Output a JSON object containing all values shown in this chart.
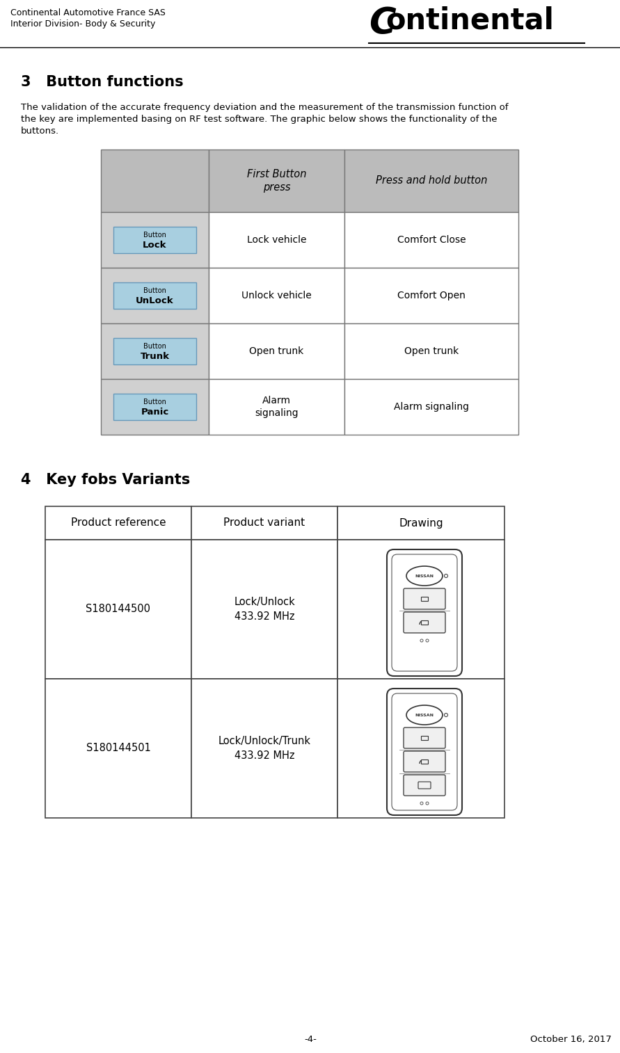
{
  "header_left_line1": "Continental Automotive France SAS",
  "header_left_line2": "Interior Division- Body & Security",
  "footer_page": "-4-",
  "footer_date": "October 16, 2017",
  "section3_title": "3   Button functions",
  "section3_body": "The validation of the accurate frequency deviation and the measurement of the transmission function of\nthe key are implemented basing on RF test software. The graphic below shows the functionality of the\nbuttons.",
  "table1_header_col2": "First Button\npress",
  "table1_header_col3": "Press and hold button",
  "table1_rows": [
    {
      "button_line1": "Button",
      "button_line2": "Lock",
      "col2": "Lock vehicle",
      "col3": "Comfort Close"
    },
    {
      "button_line1": "Button",
      "button_line2": "UnLock",
      "col2": "Unlock vehicle",
      "col3": "Comfort Open"
    },
    {
      "button_line1": "Button",
      "button_line2": "Trunk",
      "col2": "Open trunk",
      "col3": "Open trunk"
    },
    {
      "button_line1": "Button",
      "button_line2": "Panic",
      "col2": "Alarm\nsignaling",
      "col3": "Alarm signaling"
    }
  ],
  "section4_title": "4   Key fobs Variants",
  "table2_headers": [
    "Product reference",
    "Product variant",
    "Drawing"
  ],
  "table2_rows": [
    {
      "ref": "S180144500",
      "variant": "Lock/Unlock\n433.92 MHz",
      "num_btns": 2
    },
    {
      "ref": "S180144501",
      "variant": "Lock/Unlock/Trunk\n433.92 MHz",
      "num_btns": 3
    }
  ],
  "button_color": "#a8cfe0",
  "table_header_bg": "#bbbbbb",
  "table_border_color": "#777777",
  "row_bg": "#d0d0d0",
  "white": "#ffffff",
  "black": "#000000"
}
